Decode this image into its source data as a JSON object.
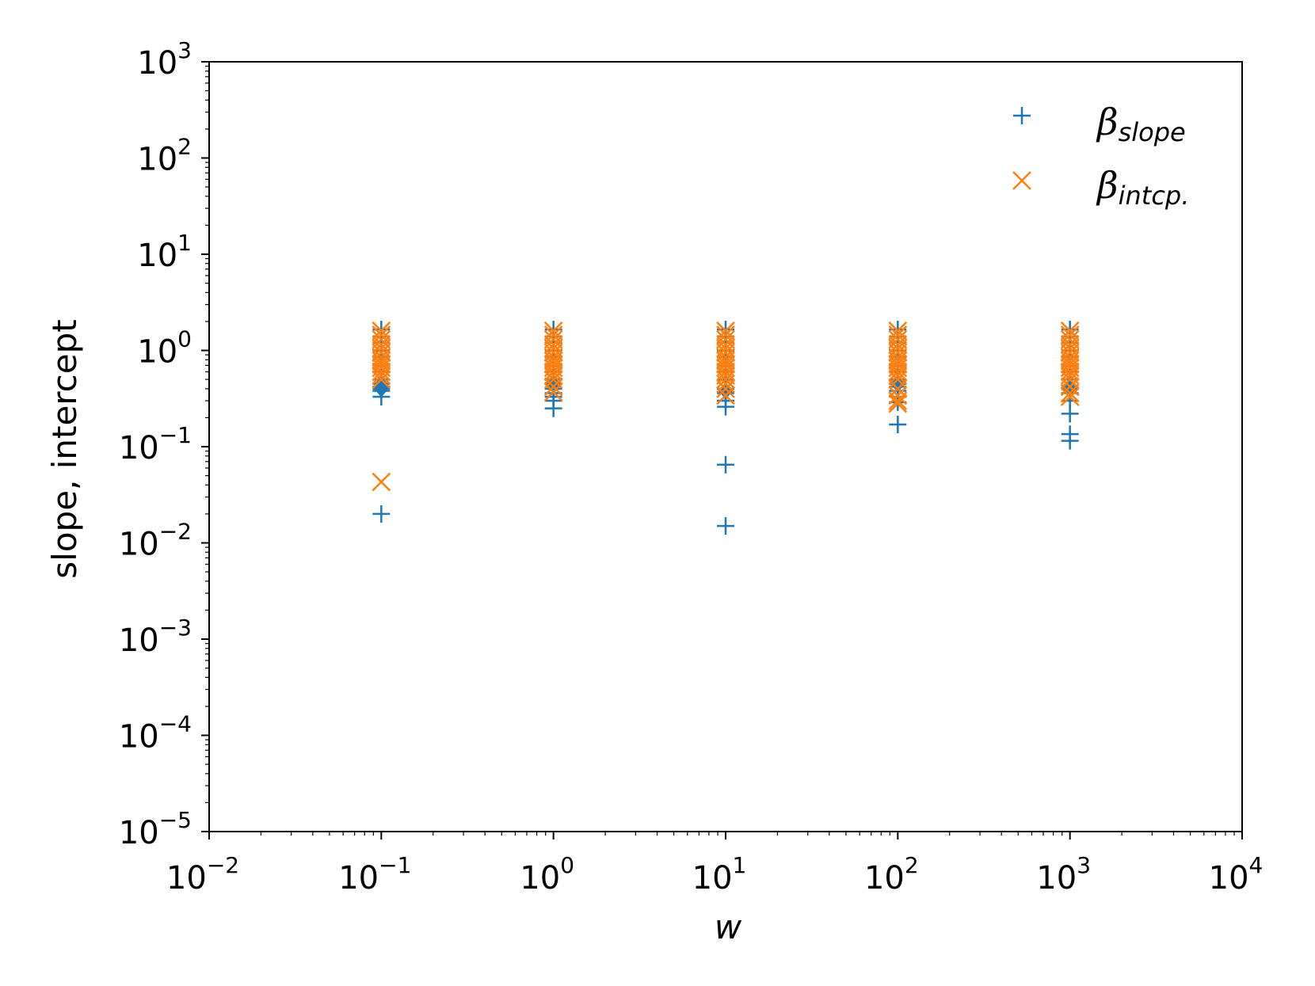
{
  "chart_data": {
    "type": "scatter",
    "xlabel": "w",
    "ylabel": "slope, intercept",
    "xscale": "log",
    "yscale": "log",
    "xlim": [
      0.01,
      10000
    ],
    "ylim": [
      1e-05,
      1000
    ],
    "x_ticks": [
      {
        "base": "10",
        "exp": "−2",
        "value": 0.01
      },
      {
        "base": "10",
        "exp": "−1",
        "value": 0.1
      },
      {
        "base": "10",
        "exp": "0",
        "value": 1
      },
      {
        "base": "10",
        "exp": "1",
        "value": 10
      },
      {
        "base": "10",
        "exp": "2",
        "value": 100
      },
      {
        "base": "10",
        "exp": "3",
        "value": 1000
      },
      {
        "base": "10",
        "exp": "4",
        "value": 10000
      }
    ],
    "y_ticks": [
      {
        "base": "10",
        "exp": "−5",
        "value": 1e-05
      },
      {
        "base": "10",
        "exp": "−4",
        "value": 0.0001
      },
      {
        "base": "10",
        "exp": "−3",
        "value": 0.001
      },
      {
        "base": "10",
        "exp": "−2",
        "value": 0.01
      },
      {
        "base": "10",
        "exp": "−1",
        "value": 0.1
      },
      {
        "base": "10",
        "exp": "0",
        "value": 1
      },
      {
        "base": "10",
        "exp": "1",
        "value": 10
      },
      {
        "base": "10",
        "exp": "2",
        "value": 100
      },
      {
        "base": "10",
        "exp": "3",
        "value": 1000
      }
    ],
    "grid": false,
    "legend_position": "top-right",
    "series": [
      {
        "name": "β",
        "name_sub": "slope",
        "marker": "plus",
        "color": "#1f77b4",
        "points": [
          [
            0.1,
            1.65
          ],
          [
            0.1,
            1.4
          ],
          [
            0.1,
            1.2
          ],
          [
            0.1,
            1.0
          ],
          [
            0.1,
            0.85
          ],
          [
            0.1,
            0.7
          ],
          [
            0.1,
            0.6
          ],
          [
            0.1,
            0.5
          ],
          [
            0.1,
            0.45
          ],
          [
            0.1,
            0.42
          ],
          [
            0.1,
            0.4
          ],
          [
            0.1,
            0.38
          ],
          [
            0.1,
            0.33
          ],
          [
            0.1,
            0.02
          ],
          [
            1,
            1.65
          ],
          [
            1,
            1.4
          ],
          [
            1,
            1.2
          ],
          [
            1,
            1.0
          ],
          [
            1,
            0.85
          ],
          [
            1,
            0.7
          ],
          [
            1,
            0.6
          ],
          [
            1,
            0.5
          ],
          [
            1,
            0.45
          ],
          [
            1,
            0.4
          ],
          [
            1,
            0.36
          ],
          [
            1,
            0.33
          ],
          [
            1,
            0.3
          ],
          [
            1,
            0.25
          ],
          [
            10,
            1.65
          ],
          [
            10,
            1.4
          ],
          [
            10,
            1.2
          ],
          [
            10,
            1.0
          ],
          [
            10,
            0.85
          ],
          [
            10,
            0.7
          ],
          [
            10,
            0.6
          ],
          [
            10,
            0.5
          ],
          [
            10,
            0.4
          ],
          [
            10,
            0.36
          ],
          [
            10,
            0.3
          ],
          [
            10,
            0.26
          ],
          [
            10,
            0.065
          ],
          [
            10,
            0.015
          ],
          [
            100,
            1.65
          ],
          [
            100,
            1.4
          ],
          [
            100,
            1.2
          ],
          [
            100,
            1.0
          ],
          [
            100,
            0.85
          ],
          [
            100,
            0.7
          ],
          [
            100,
            0.6
          ],
          [
            100,
            0.5
          ],
          [
            100,
            0.45
          ],
          [
            100,
            0.42
          ],
          [
            100,
            0.38
          ],
          [
            100,
            0.33
          ],
          [
            100,
            0.29
          ],
          [
            100,
            0.17
          ],
          [
            1000,
            1.65
          ],
          [
            1000,
            1.4
          ],
          [
            1000,
            1.2
          ],
          [
            1000,
            1.0
          ],
          [
            1000,
            0.85
          ],
          [
            1000,
            0.7
          ],
          [
            1000,
            0.6
          ],
          [
            1000,
            0.5
          ],
          [
            1000,
            0.4
          ],
          [
            1000,
            0.36
          ],
          [
            1000,
            0.3
          ],
          [
            1000,
            0.22
          ],
          [
            1000,
            0.135
          ],
          [
            1000,
            0.115
          ]
        ]
      },
      {
        "name": "β",
        "name_sub": "intcp.",
        "marker": "x",
        "color": "#ff7f0e",
        "points": [
          [
            0.1,
            1.6
          ],
          [
            0.1,
            1.45
          ],
          [
            0.1,
            1.3
          ],
          [
            0.1,
            1.15
          ],
          [
            0.1,
            1.05
          ],
          [
            0.1,
            0.95
          ],
          [
            0.1,
            0.85
          ],
          [
            0.1,
            0.78
          ],
          [
            0.1,
            0.72
          ],
          [
            0.1,
            0.66
          ],
          [
            0.1,
            0.6
          ],
          [
            0.1,
            0.55
          ],
          [
            0.1,
            0.5
          ],
          [
            0.1,
            0.043
          ],
          [
            1,
            1.6
          ],
          [
            1,
            1.45
          ],
          [
            1,
            1.3
          ],
          [
            1,
            1.15
          ],
          [
            1,
            1.05
          ],
          [
            1,
            0.95
          ],
          [
            1,
            0.85
          ],
          [
            1,
            0.78
          ],
          [
            1,
            0.72
          ],
          [
            1,
            0.66
          ],
          [
            1,
            0.6
          ],
          [
            1,
            0.55
          ],
          [
            1,
            0.5
          ],
          [
            1,
            0.42
          ],
          [
            1,
            0.37
          ],
          [
            10,
            1.6
          ],
          [
            10,
            1.45
          ],
          [
            10,
            1.3
          ],
          [
            10,
            1.15
          ],
          [
            10,
            1.05
          ],
          [
            10,
            0.95
          ],
          [
            10,
            0.85
          ],
          [
            10,
            0.78
          ],
          [
            10,
            0.72
          ],
          [
            10,
            0.66
          ],
          [
            10,
            0.6
          ],
          [
            10,
            0.55
          ],
          [
            10,
            0.5
          ],
          [
            10,
            0.45
          ],
          [
            10,
            0.4
          ],
          [
            10,
            0.34
          ],
          [
            100,
            1.6
          ],
          [
            100,
            1.45
          ],
          [
            100,
            1.3
          ],
          [
            100,
            1.15
          ],
          [
            100,
            1.05
          ],
          [
            100,
            0.95
          ],
          [
            100,
            0.85
          ],
          [
            100,
            0.78
          ],
          [
            100,
            0.72
          ],
          [
            100,
            0.66
          ],
          [
            100,
            0.6
          ],
          [
            100,
            0.55
          ],
          [
            100,
            0.5
          ],
          [
            100,
            0.4
          ],
          [
            100,
            0.34
          ],
          [
            100,
            0.3
          ],
          [
            100,
            0.28
          ],
          [
            1000,
            1.6
          ],
          [
            1000,
            1.45
          ],
          [
            1000,
            1.3
          ],
          [
            1000,
            1.15
          ],
          [
            1000,
            1.05
          ],
          [
            1000,
            0.95
          ],
          [
            1000,
            0.85
          ],
          [
            1000,
            0.78
          ],
          [
            1000,
            0.72
          ],
          [
            1000,
            0.66
          ],
          [
            1000,
            0.6
          ],
          [
            1000,
            0.55
          ],
          [
            1000,
            0.5
          ],
          [
            1000,
            0.42
          ],
          [
            1000,
            0.36
          ],
          [
            1000,
            0.33
          ]
        ]
      },
      {
        "name": "",
        "marker": "diamond",
        "color": "#1f77b4",
        "points": [
          [
            0.1,
            0.44
          ],
          [
            0.1,
            0.4
          ],
          [
            1,
            0.45
          ],
          [
            10,
            0.38
          ],
          [
            100,
            0.45
          ],
          [
            1000,
            0.4
          ]
        ]
      }
    ]
  }
}
